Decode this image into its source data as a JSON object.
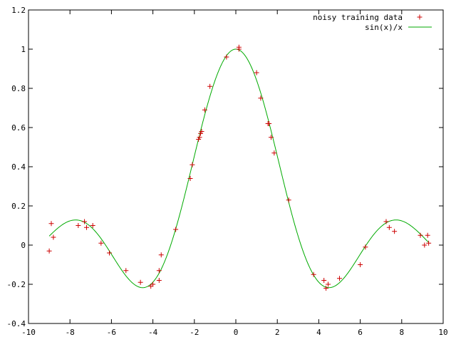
{
  "chart_data": {
    "type": "scatter",
    "title": "",
    "xlabel": "",
    "ylabel": "",
    "xlim": [
      -10,
      10
    ],
    "ylim": [
      -0.4,
      1.2
    ],
    "x_ticks": [
      "-10",
      "-8",
      "-6",
      "-4",
      "-2",
      "0",
      "2",
      "4",
      "6",
      "8",
      "10"
    ],
    "y_ticks": [
      "-0.4",
      "-0.2",
      "0",
      "0.2",
      "0.4",
      "0.6",
      "0.8",
      "1",
      "1.2"
    ],
    "grid": false,
    "legend_position": "top-right",
    "series": [
      {
        "name": "noisy training data",
        "type": "scatter",
        "marker": "+",
        "color": "#cc0000",
        "points": [
          [
            -9.0,
            -0.03
          ],
          [
            -8.9,
            0.11
          ],
          [
            -8.8,
            0.04
          ],
          [
            -7.6,
            0.1
          ],
          [
            -7.3,
            0.12
          ],
          [
            -7.2,
            0.09
          ],
          [
            -6.9,
            0.1
          ],
          [
            -6.5,
            0.01
          ],
          [
            -6.1,
            -0.04
          ],
          [
            -5.3,
            -0.13
          ],
          [
            -4.6,
            -0.19
          ],
          [
            -4.1,
            -0.21
          ],
          [
            -4.0,
            -0.2
          ],
          [
            -3.7,
            -0.18
          ],
          [
            -3.7,
            -0.13
          ],
          [
            -3.6,
            -0.05
          ],
          [
            -2.9,
            0.08
          ],
          [
            -2.2,
            0.34
          ],
          [
            -2.1,
            0.41
          ],
          [
            -1.8,
            0.54
          ],
          [
            -1.75,
            0.55
          ],
          [
            -1.7,
            0.57
          ],
          [
            -1.65,
            0.58
          ],
          [
            -1.5,
            0.69
          ],
          [
            -1.25,
            0.81
          ],
          [
            -0.45,
            0.96
          ],
          [
            0.15,
            1.0
          ],
          [
            0.15,
            1.01
          ],
          [
            1.0,
            0.88
          ],
          [
            1.2,
            0.75
          ],
          [
            1.55,
            0.62
          ],
          [
            1.6,
            0.62
          ],
          [
            1.7,
            0.55
          ],
          [
            1.85,
            0.47
          ],
          [
            2.55,
            0.23
          ],
          [
            3.75,
            -0.15
          ],
          [
            4.25,
            -0.18
          ],
          [
            4.35,
            -0.22
          ],
          [
            4.45,
            -0.2
          ],
          [
            5.0,
            -0.17
          ],
          [
            6.0,
            -0.1
          ],
          [
            6.25,
            -0.01
          ],
          [
            7.25,
            0.12
          ],
          [
            7.4,
            0.09
          ],
          [
            7.65,
            0.07
          ],
          [
            8.9,
            0.05
          ],
          [
            9.1,
            0.0
          ],
          [
            9.25,
            0.05
          ],
          [
            9.3,
            0.01
          ]
        ]
      },
      {
        "name": "sin(x)/x",
        "type": "line",
        "function": "sin(x)/x",
        "color": "#00aa00",
        "x_range": [
          -9,
          9.3
        ]
      }
    ]
  }
}
